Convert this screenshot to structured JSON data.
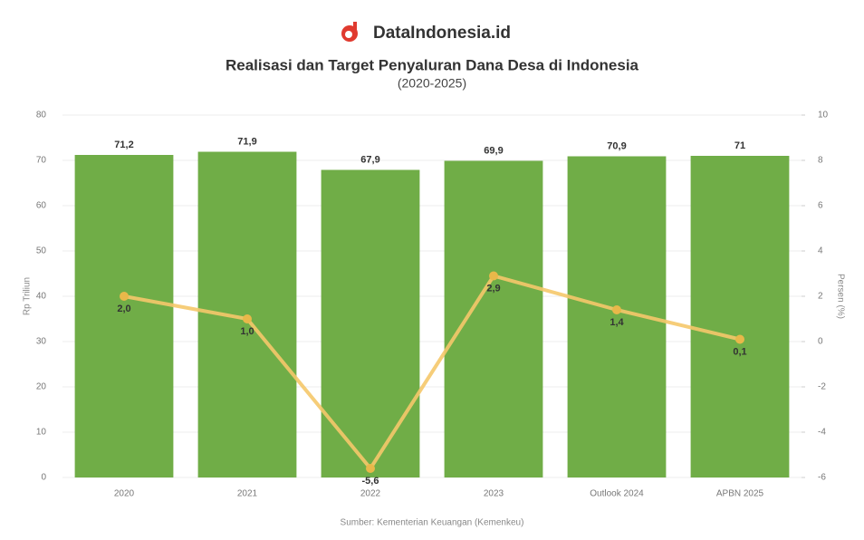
{
  "brand": "DataIndonesia.id",
  "chart_data": {
    "type": "bar",
    "title": "Realisasi dan Target Penyaluran Dana Desa di Indonesia",
    "subtitle": "(2020-2025)",
    "source": "Sumber: Kementerian Keuangan (Kemenkeu)",
    "y_label": "Rp Triliun",
    "y2_label": "Persen (%)",
    "categories": [
      "2020",
      "2021",
      "2022",
      "2023",
      "Outlook 2024",
      "APBN 2025"
    ],
    "ylim": [
      0,
      80
    ],
    "yticks": [
      0,
      10,
      20,
      30,
      40,
      50,
      60,
      70,
      80
    ],
    "y2lim": [
      -6,
      10
    ],
    "y2ticks": [
      -6,
      -4,
      -2,
      0,
      2,
      4,
      6,
      8,
      10
    ],
    "grid": true,
    "series": [
      {
        "type": "bar",
        "color": "#70ad47",
        "values": [
          71.2,
          71.9,
          67.9,
          69.9,
          70.9,
          71
        ],
        "value_labels": [
          "71,2",
          "71,9",
          "67,9",
          "69,9",
          "70,9",
          "71"
        ]
      },
      {
        "type": "line",
        "axis": "y2",
        "color": "#f5c86a",
        "values": [
          2.0,
          1.0,
          -5.6,
          2.9,
          1.4,
          0.1
        ],
        "value_labels": [
          "2,0",
          "1,0",
          "-5,6",
          "2,9",
          "1,4",
          "0,1"
        ]
      }
    ]
  }
}
